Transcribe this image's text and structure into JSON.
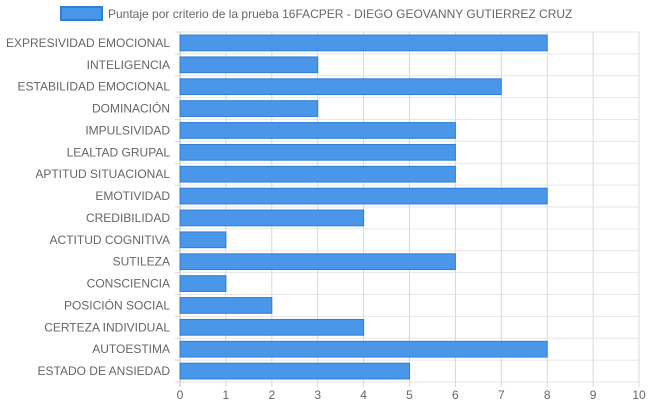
{
  "chart_data": {
    "type": "bar",
    "orientation": "horizontal",
    "title": "",
    "xlabel": "",
    "ylabel": "",
    "xlim": [
      0,
      10
    ],
    "x_ticks": [
      "0",
      "1",
      "2",
      "3",
      "4",
      "5",
      "6",
      "7",
      "8",
      "9",
      "10"
    ],
    "grid": true,
    "legend_position": "top",
    "bar_color": "#4a96e8",
    "bar_border_color": "#2f7fd6",
    "categories": [
      "EXPRESIVIDAD EMOCIONAL",
      "INTELIGENCIA",
      "ESTABILIDAD EMOCIONAL",
      "DOMINACIÓN",
      "IMPULSIVIDAD",
      "LEALTAD GRUPAL",
      "APTITUD SITUACIONAL",
      "EMOTIVIDAD",
      "CREDIBILIDAD",
      "ACTITUD COGNITIVA",
      "SUTILEZA",
      "CONSCIENCIA",
      "POSICIÓN SOCIAL",
      "CERTEZA INDIVIDUAL",
      "AUTOESTIMA",
      "ESTADO DE ANSIEDAD"
    ],
    "series": [
      {
        "name": "Puntaje por criterio de la prueba 16FACPER - DIEGO GEOVANNY GUTIERREZ CRUZ",
        "values": [
          8,
          3,
          7,
          3,
          6,
          6,
          6,
          8,
          4,
          1,
          6,
          1,
          2,
          4,
          8,
          5
        ]
      }
    ]
  }
}
